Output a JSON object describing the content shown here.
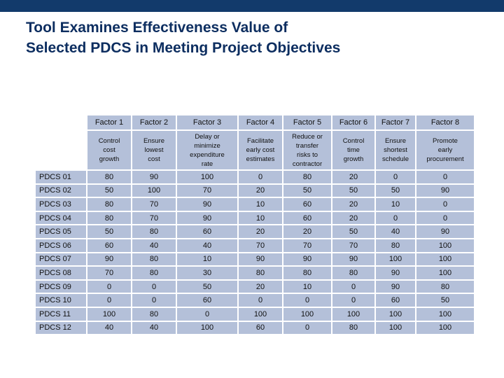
{
  "title": {
    "line1": "Tool Examines Effectiveness Value of",
    "line2": "Selected PDCS in Meeting Project Objectives"
  },
  "factors": [
    "Factor 1",
    "Factor 2",
    "Factor 3",
    "Factor 4",
    "Factor 5",
    "Factor 6",
    "Factor 7",
    "Factor 8"
  ],
  "descriptions": [
    [
      "Control",
      "cost",
      "growth"
    ],
    [
      "Ensure",
      "lowest",
      "cost"
    ],
    [
      "Delay or",
      "minimize",
      "expenditure",
      "rate"
    ],
    [
      "Facilitate",
      "early cost",
      "estimates"
    ],
    [
      "Reduce or",
      "transfer",
      "risks to",
      "contractor"
    ],
    [
      "Control",
      "time",
      "growth"
    ],
    [
      "Ensure",
      "shortest",
      "schedule"
    ],
    [
      "Promote",
      "early",
      "procurement"
    ]
  ],
  "rows": [
    {
      "label": "PDCS 01",
      "values": [
        "80",
        "90",
        "100",
        "0",
        "80",
        "20",
        "0",
        "0"
      ]
    },
    {
      "label": "PDCS 02",
      "values": [
        "50",
        "100",
        "70",
        "20",
        "50",
        "50",
        "50",
        "90"
      ]
    },
    {
      "label": "PDCS 03",
      "values": [
        "80",
        "70",
        "90",
        "10",
        "60",
        "20",
        "10",
        "0"
      ]
    },
    {
      "label": "PDCS 04",
      "values": [
        "80",
        "70",
        "90",
        "10",
        "60",
        "20",
        "0",
        "0"
      ]
    },
    {
      "label": "PDCS 05",
      "values": [
        "50",
        "80",
        "60",
        "20",
        "20",
        "50",
        "40",
        "90"
      ]
    },
    {
      "label": "PDCS 06",
      "values": [
        "60",
        "40",
        "40",
        "70",
        "70",
        "70",
        "80",
        "100"
      ]
    },
    {
      "label": "PDCS 07",
      "values": [
        "90",
        "80",
        "10",
        "90",
        "90",
        "90",
        "100",
        "100"
      ]
    },
    {
      "label": "PDCS 08",
      "values": [
        "70",
        "80",
        "30",
        "80",
        "80",
        "80",
        "90",
        "100"
      ]
    },
    {
      "label": "PDCS 09",
      "values": [
        "0",
        "0",
        "50",
        "20",
        "10",
        "0",
        "90",
        "80"
      ]
    },
    {
      "label": "PDCS 10",
      "values": [
        "0",
        "0",
        "60",
        "0",
        "0",
        "0",
        "60",
        "50"
      ]
    },
    {
      "label": "PDCS 11",
      "values": [
        "100",
        "80",
        "0",
        "100",
        "100",
        "100",
        "100",
        "100"
      ]
    },
    {
      "label": "PDCS 12",
      "values": [
        "40",
        "40",
        "100",
        "60",
        "0",
        "80",
        "100",
        "100"
      ]
    }
  ],
  "colors": {
    "topbar": "#123a6b",
    "title": "#0d2e60",
    "cell": "#b4c0d9"
  }
}
